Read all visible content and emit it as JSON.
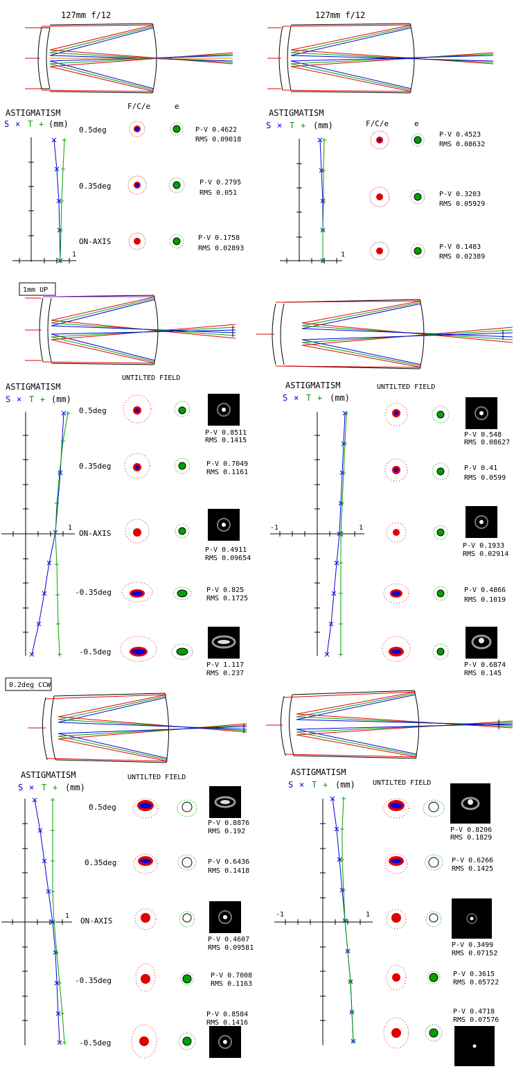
{
  "colors": {
    "red": "#e00000",
    "blue": "#0000dd",
    "green": "#00a000",
    "orange": "#e08000",
    "purple": "#8a2be2",
    "black": "#000000"
  },
  "legend": {
    "astigmatism": "ASTIGMATISM",
    "s_label": "S",
    "x_mark": "×",
    "t_label": "T",
    "plus_mark": "+",
    "units": "(mm)"
  },
  "scale_one": "1",
  "scale_neg_one": "-1",
  "sections": [
    {
      "tag": "",
      "panels": [
        {
          "title": "127mm f/12",
          "col_header_1": "F/C/e",
          "col_header_2": "e",
          "rows": [
            {
              "field": "0.5deg",
              "pv": "P-V 0.4622",
              "rms": "RMS 0.09018"
            },
            {
              "field": "0.35deg",
              "pv": "P-V 0.2795",
              "rms": "RMS 0.051"
            },
            {
              "field": "ON-AXIS",
              "pv": "P-V 0.1758",
              "rms": "RMS 0.02893"
            }
          ]
        },
        {
          "title": "127mm f/12",
          "col_header_1": "F/C/e",
          "col_header_2": "e",
          "rows": [
            {
              "field": "",
              "pv": "P-V 0.4523",
              "rms": "RMS 0.08632"
            },
            {
              "field": "",
              "pv": "P-V 0.3203",
              "rms": "RMS 0.05929"
            },
            {
              "field": "",
              "pv": "P-V 0.1483",
              "rms": "RMS 0.02389"
            }
          ]
        }
      ]
    },
    {
      "tag": "1mm UP",
      "panels": [
        {
          "untilted": "UNTILTED FIELD",
          "rows": [
            {
              "field": "0.5deg",
              "pv": "P-V 0.8511",
              "rms": "RMS 0.1415"
            },
            {
              "field": "0.35deg",
              "pv": "P-V 0.7049",
              "rms": "RMS 0.1161"
            },
            {
              "field": "ON-AXIS",
              "pv": "P-V 0.4911",
              "rms": "RMS 0.09654"
            },
            {
              "field": "-0.35deg",
              "pv": "P-V 0.825",
              "rms": "RMS 0.1725"
            },
            {
              "field": "-0.5deg",
              "pv": "P-V 1.117",
              "rms": "RMS 0.237"
            }
          ]
        },
        {
          "untilted": "UNTILTED FIELD",
          "rows": [
            {
              "field": "",
              "pv": "P-V 0.548",
              "rms": "RMS 0.08627"
            },
            {
              "field": "",
              "pv": "P-V 0.41",
              "rms": "RMS 0.0599"
            },
            {
              "field": "",
              "pv": "P-V 0.1933",
              "rms": "RMS 0.02914"
            },
            {
              "field": "",
              "pv": "P-V 0.4866",
              "rms": "RMS 0.1019"
            },
            {
              "field": "",
              "pv": "P-V 0.6874",
              "rms": "RMS 0.145"
            }
          ]
        }
      ]
    },
    {
      "tag": "0.2deg CCW",
      "panels": [
        {
          "untilted": "UNTILTED FIELD",
          "rows": [
            {
              "field": "0.5deg",
              "pv": "P-V 0.8876",
              "rms": "RMS 0.192"
            },
            {
              "field": "0.35deg",
              "pv": "P-V 0.6436",
              "rms": "RMS 0.1418"
            },
            {
              "field": "ON-AXIS",
              "pv": "P-V 0.4607",
              "rms": "RMS 0.09581"
            },
            {
              "field": "-0.35deg",
              "pv": "P-V 0.7008",
              "rms": "RMS 0.1163"
            },
            {
              "field": "-0.5deg",
              "pv": "P-V 0.8584",
              "rms": "RMS 0.1416"
            }
          ]
        },
        {
          "untilted": "UNTILTED FIELD",
          "rows": [
            {
              "field": "",
              "pv": "P-V 0.8206",
              "rms": "RMS 0.1829"
            },
            {
              "field": "",
              "pv": "P-V 0.6266",
              "rms": "RMS 0.1425"
            },
            {
              "field": "",
              "pv": "P-V 0.3499",
              "rms": "RMS 0.07152"
            },
            {
              "field": "",
              "pv": "P-V 0.3615",
              "rms": "RMS 0.05722"
            },
            {
              "field": "",
              "pv": "P-V 0.4718",
              "rms": "RMS 0.07576"
            }
          ]
        }
      ]
    }
  ]
}
